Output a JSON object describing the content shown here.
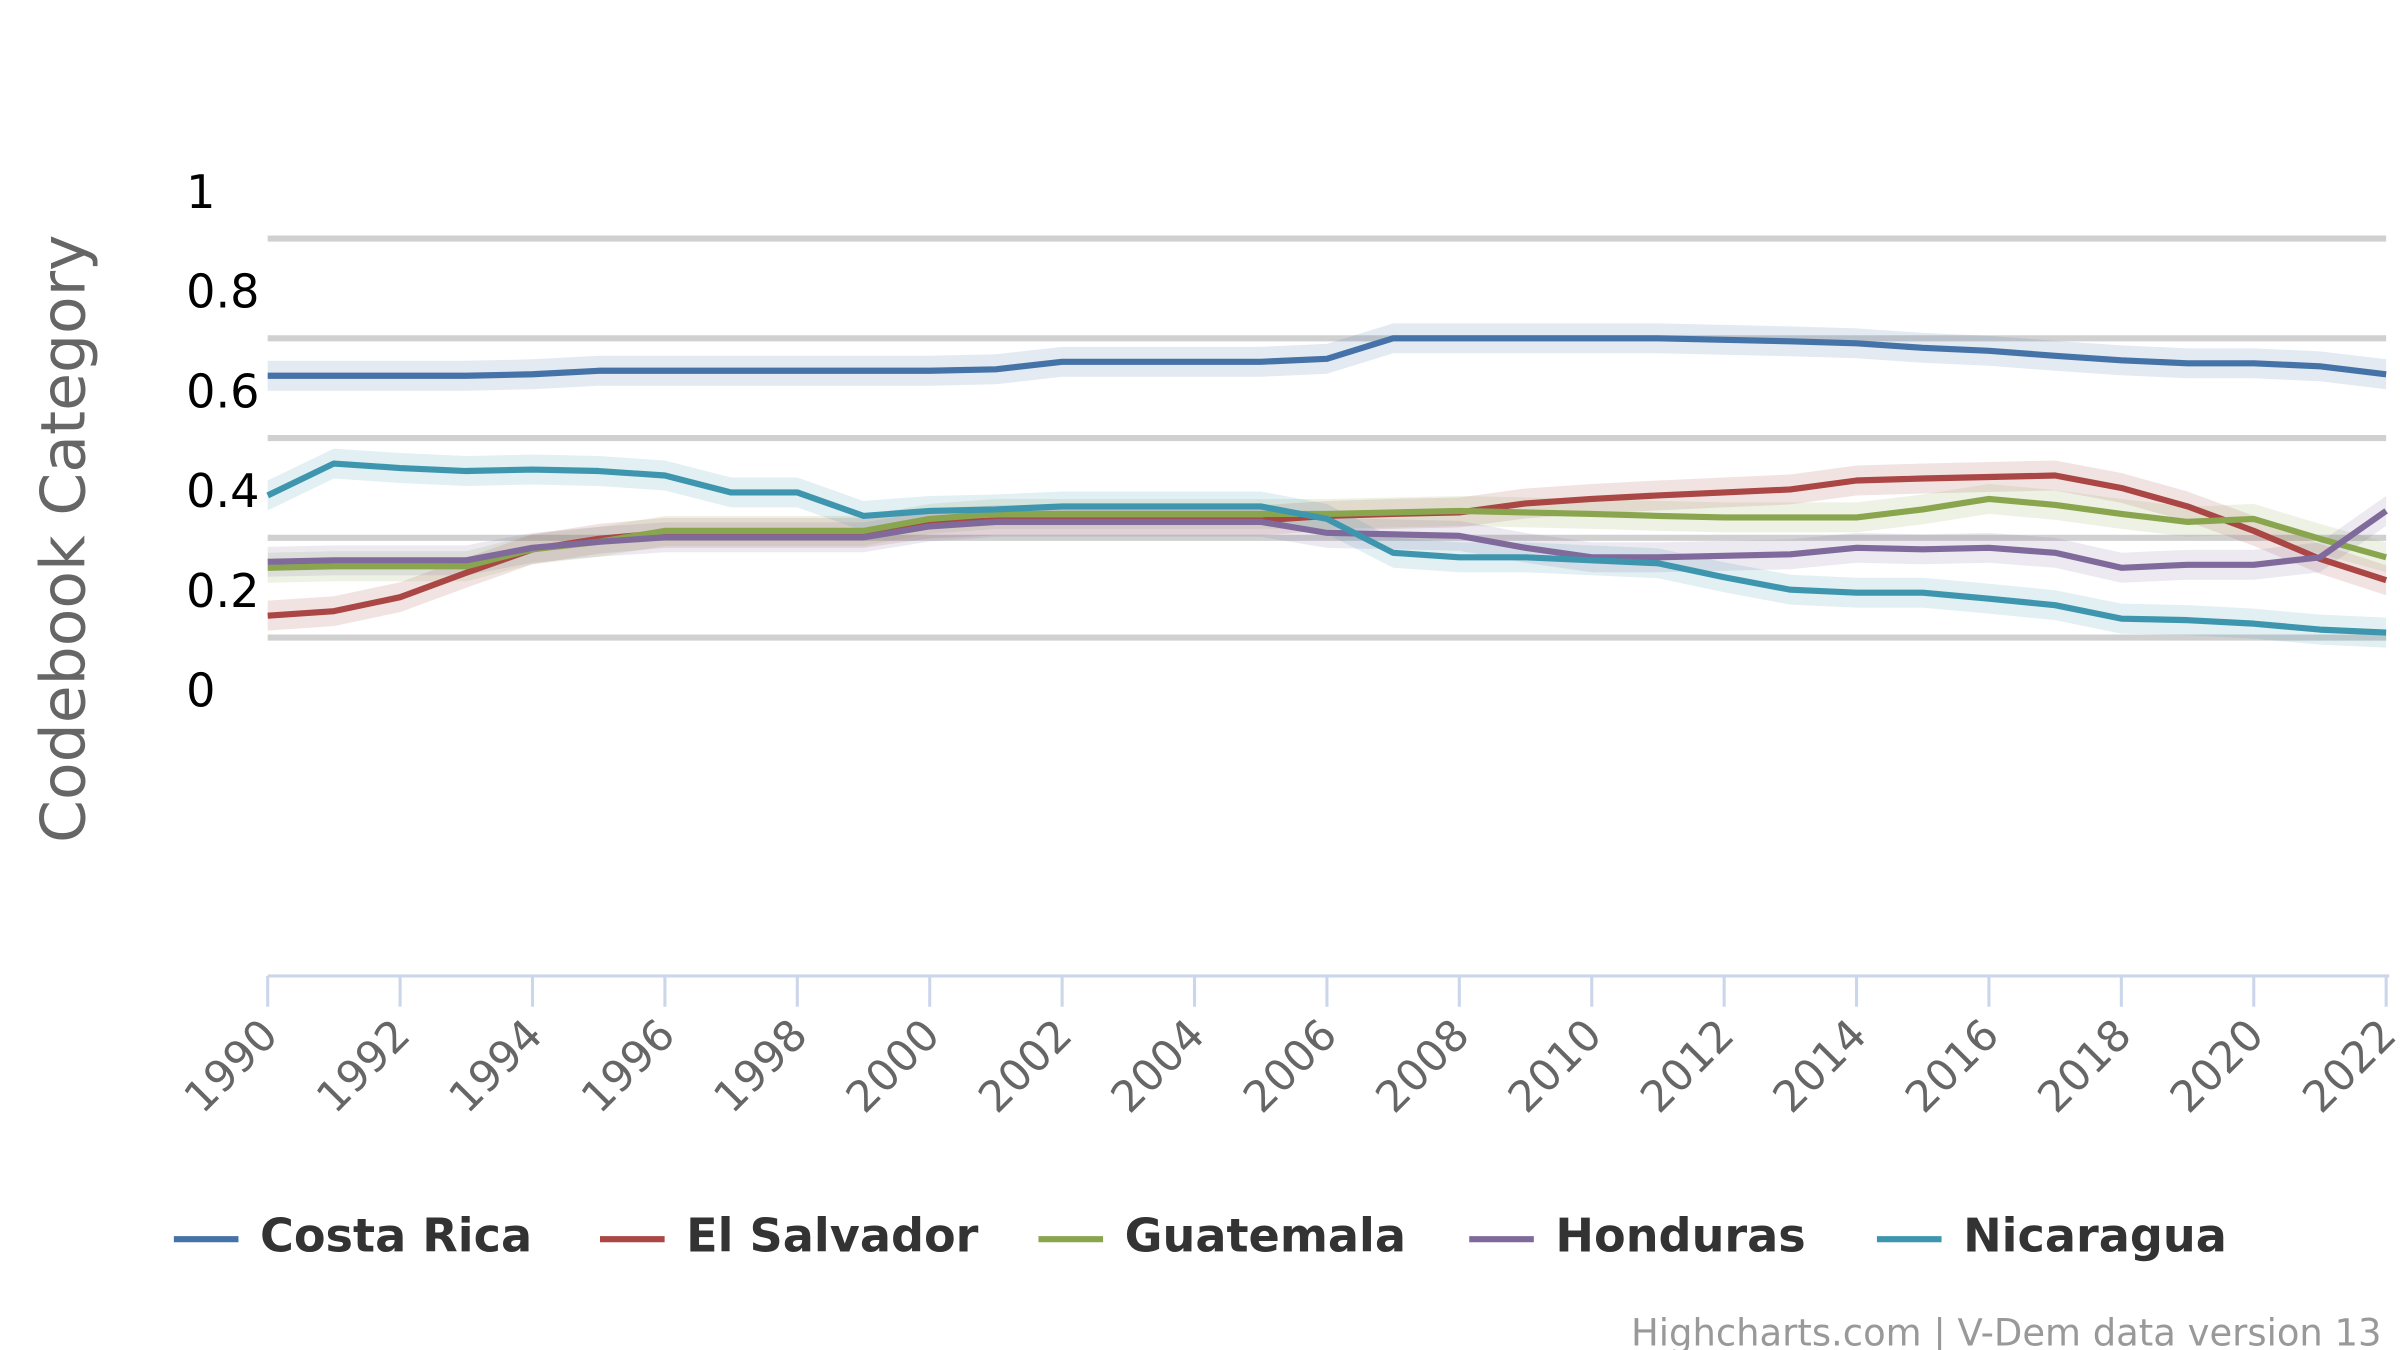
{
  "chart_data": {
    "type": "line",
    "title": "",
    "xlabel": "",
    "ylabel": "Codebook Category",
    "ylim": [
      0,
      1
    ],
    "yticks": [
      0,
      0.2,
      0.4,
      0.6,
      0.8,
      1
    ],
    "ytick_labels": [
      "0",
      "0.2",
      "0.4",
      "0.6",
      "0.8",
      "1"
    ],
    "xlim": [
      1990,
      2022
    ],
    "xticks": [
      1990,
      1992,
      1994,
      1996,
      1998,
      2000,
      2002,
      2004,
      2006,
      2008,
      2010,
      2012,
      2014,
      2016,
      2018,
      2020,
      2022
    ],
    "xtick_labels": [
      "1990",
      "1992",
      "1994",
      "1996",
      "1998",
      "2000",
      "2002",
      "2004",
      "2006",
      "2008",
      "2010",
      "2012",
      "2014",
      "2016",
      "2018",
      "2020",
      "2022"
    ],
    "grid": true,
    "legend_position": "bottom",
    "band_halfwidth": 0.03,
    "x": [
      1990,
      1991,
      1992,
      1993,
      1994,
      1995,
      1996,
      1997,
      1998,
      1999,
      2000,
      2001,
      2002,
      2003,
      2004,
      2005,
      2006,
      2007,
      2008,
      2009,
      2010,
      2011,
      2012,
      2013,
      2014,
      2015,
      2016,
      2017,
      2018,
      2019,
      2020,
      2021,
      2022
    ],
    "series": [
      {
        "name": "Costa Rica",
        "color": "#4572A7",
        "values": [
          0.725,
          0.725,
          0.725,
          0.725,
          0.728,
          0.735,
          0.735,
          0.735,
          0.735,
          0.735,
          0.735,
          0.738,
          0.753,
          0.753,
          0.753,
          0.753,
          0.759,
          0.8,
          0.8,
          0.8,
          0.8,
          0.8,
          0.797,
          0.794,
          0.79,
          0.781,
          0.775,
          0.765,
          0.756,
          0.75,
          0.75,
          0.744,
          0.728
        ]
      },
      {
        "name": "El Salvador",
        "color": "#AA4643",
        "values": [
          0.244,
          0.253,
          0.281,
          0.33,
          0.377,
          0.398,
          0.41,
          0.41,
          0.41,
          0.41,
          0.429,
          0.435,
          0.435,
          0.435,
          0.435,
          0.435,
          0.444,
          0.448,
          0.451,
          0.469,
          0.478,
          0.485,
          0.491,
          0.497,
          0.515,
          0.519,
          0.522,
          0.525,
          0.5,
          0.463,
          0.414,
          0.358,
          0.315
        ]
      },
      {
        "name": "Guatemala",
        "color": "#89A54E",
        "values": [
          0.34,
          0.343,
          0.343,
          0.343,
          0.377,
          0.392,
          0.414,
          0.414,
          0.414,
          0.414,
          0.438,
          0.448,
          0.448,
          0.448,
          0.448,
          0.448,
          0.448,
          0.451,
          0.454,
          0.451,
          0.448,
          0.444,
          0.441,
          0.441,
          0.441,
          0.457,
          0.478,
          0.466,
          0.448,
          0.432,
          0.438,
          0.398,
          0.361
        ]
      },
      {
        "name": "Honduras",
        "color": "#80699B",
        "values": [
          0.352,
          0.355,
          0.355,
          0.355,
          0.38,
          0.392,
          0.401,
          0.401,
          0.401,
          0.401,
          0.423,
          0.432,
          0.432,
          0.432,
          0.432,
          0.432,
          0.41,
          0.407,
          0.404,
          0.38,
          0.361,
          0.361,
          0.364,
          0.367,
          0.38,
          0.377,
          0.38,
          0.37,
          0.34,
          0.346,
          0.346,
          0.361,
          0.454
        ]
      },
      {
        "name": "Nicaragua",
        "color": "#3D96AE",
        "values": [
          0.485,
          0.549,
          0.54,
          0.534,
          0.537,
          0.534,
          0.525,
          0.491,
          0.491,
          0.444,
          0.454,
          0.457,
          0.463,
          0.463,
          0.463,
          0.463,
          0.438,
          0.37,
          0.361,
          0.361,
          0.355,
          0.349,
          0.321,
          0.296,
          0.29,
          0.29,
          0.278,
          0.265,
          0.238,
          0.235,
          0.228,
          0.216,
          0.21
        ]
      }
    ],
    "credits": "Highcharts.com | V-Dem data version 13"
  }
}
